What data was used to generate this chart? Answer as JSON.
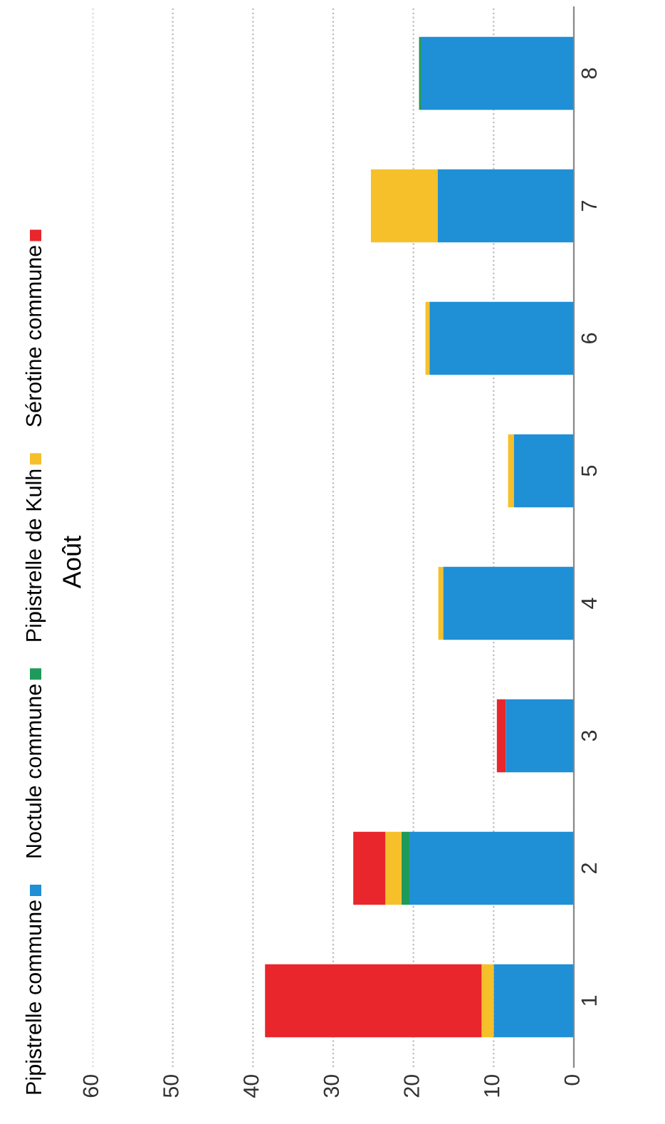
{
  "chart_data": {
    "type": "bar",
    "orientation": "horizontal",
    "stacked": true,
    "title": "Août",
    "categories": [
      "8",
      "7",
      "6",
      "5",
      "4",
      "3",
      "2",
      "1"
    ],
    "series": [
      {
        "name": "Pipistrelle commune",
        "color": "#1f8fd6",
        "values": [
          19,
          17,
          18,
          7.5,
          16.3,
          8.5,
          20.5,
          10
        ]
      },
      {
        "name": "Noctule commune",
        "color": "#1e9a5a",
        "values": [
          0.3,
          0,
          0,
          0,
          0,
          0,
          1,
          0
        ]
      },
      {
        "name": "Pipistrelle de Kulh",
        "color": "#f5c02a",
        "values": [
          0,
          8.3,
          0.5,
          0.7,
          0.6,
          0,
          2,
          1.5
        ]
      },
      {
        "name": "Sérotine commune",
        "color": "#e8262b",
        "values": [
          0,
          0,
          0,
          0,
          0,
          1.1,
          4,
          27
        ]
      }
    ],
    "xlim": [
      60,
      0
    ],
    "xticks": [
      60,
      50,
      40,
      30,
      20,
      10,
      0
    ],
    "grid": "x",
    "legend": "left"
  }
}
